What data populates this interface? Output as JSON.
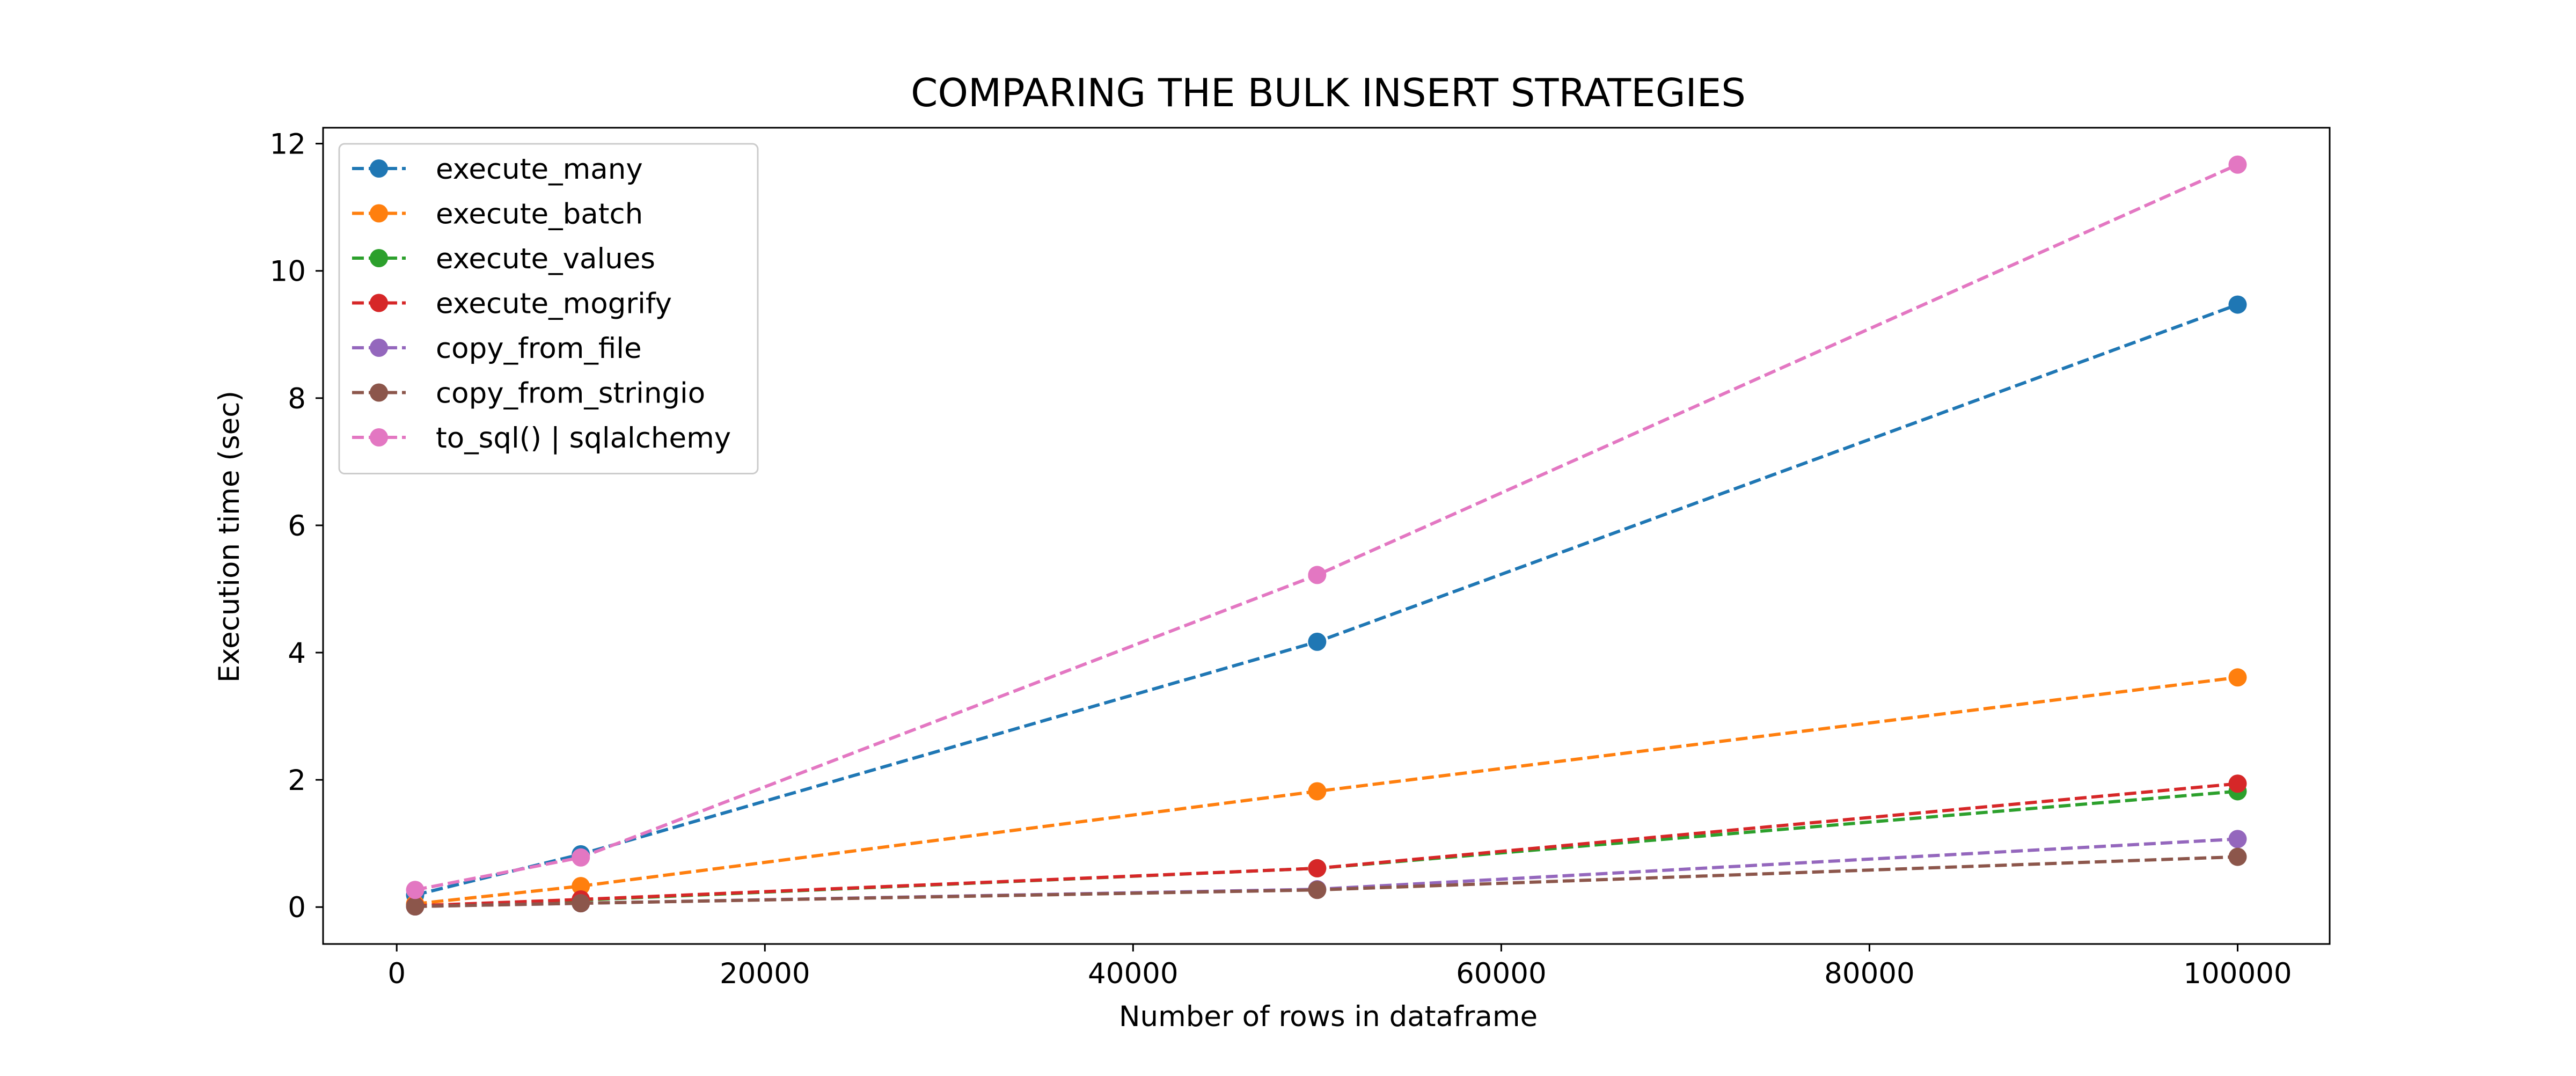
{
  "chart_data": {
    "type": "line",
    "title": "COMPARING THE BULK INSERT STRATEGIES",
    "xlabel": "Number of rows in dataframe",
    "ylabel": "Execution time (sec)",
    "x": [
      1000,
      10000,
      50000,
      100000
    ],
    "xlim": [
      -4000,
      105000
    ],
    "ylim": [
      -0.58,
      12.25
    ],
    "xticks": [
      0,
      20000,
      40000,
      60000,
      80000,
      100000
    ],
    "xtick_labels": [
      "0",
      "20000",
      "40000",
      "60000",
      "80000",
      "100000"
    ],
    "yticks": [
      0,
      2,
      4,
      6,
      8,
      10,
      12
    ],
    "ytick_labels": [
      "0",
      "2",
      "4",
      "6",
      "8",
      "10",
      "12"
    ],
    "grid": false,
    "legend_position": "top-left",
    "line_style": "dashed",
    "marker": "circle",
    "series": [
      {
        "name": "execute_many",
        "color": "#1f77b4",
        "values": [
          0.19,
          0.83,
          4.17,
          9.47
        ]
      },
      {
        "name": "execute_batch",
        "color": "#ff7f0e",
        "values": [
          0.05,
          0.33,
          1.82,
          3.61
        ]
      },
      {
        "name": "execute_values",
        "color": "#2ca02c",
        "values": [
          0.02,
          0.11,
          0.61,
          1.82
        ]
      },
      {
        "name": "execute_mogrify",
        "color": "#d62728",
        "values": [
          0.02,
          0.12,
          0.61,
          1.94
        ]
      },
      {
        "name": "copy_from_file",
        "color": "#9467bd",
        "values": [
          0.01,
          0.06,
          0.28,
          1.07
        ]
      },
      {
        "name": "copy_from_stringio",
        "color": "#8c564b",
        "values": [
          0.01,
          0.06,
          0.27,
          0.79
        ]
      },
      {
        "name": "to_sql() | sqlalchemy",
        "color": "#e377c2",
        "values": [
          0.27,
          0.78,
          5.22,
          11.67
        ]
      }
    ]
  }
}
